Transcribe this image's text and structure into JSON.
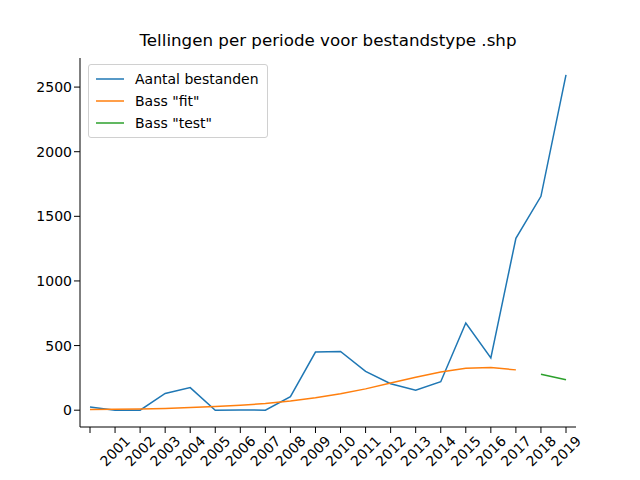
{
  "chart_data": {
    "type": "line",
    "title": "Tellingen per periode voor bestandstype .shp",
    "categories": [
      null,
      "2001",
      "2002",
      "2003",
      "2004",
      "2005",
      "2006",
      "2007",
      "2008",
      "2009",
      "2010",
      "2011",
      "2012",
      "2013",
      "2014",
      "2015",
      "2016",
      "2017",
      "2018",
      "2019"
    ],
    "series": [
      {
        "name": "Aantal bestanden",
        "color": "#1f77b4",
        "values": [
          25,
          0,
          0,
          130,
          175,
          0,
          2,
          0,
          105,
          450,
          455,
          300,
          205,
          155,
          220,
          675,
          405,
          1330,
          1655,
          2595
        ]
      },
      {
        "name": "Bass \"fit\"",
        "color": "#ff7f0e",
        "values": [
          5,
          8,
          10,
          14,
          20,
          28,
          38,
          52,
          72,
          97,
          128,
          165,
          210,
          255,
          295,
          325,
          330,
          312,
          null,
          null
        ]
      },
      {
        "name": "Bass \"test\"",
        "color": "#2ca02c",
        "values": [
          null,
          null,
          null,
          null,
          null,
          null,
          null,
          null,
          null,
          null,
          null,
          null,
          null,
          null,
          null,
          null,
          null,
          null,
          278,
          235
        ]
      }
    ],
    "ylim": [
      -130,
      2725
    ],
    "yticks": [
      0,
      500,
      1000,
      1500,
      2000,
      2500
    ],
    "legend": "upper left"
  }
}
